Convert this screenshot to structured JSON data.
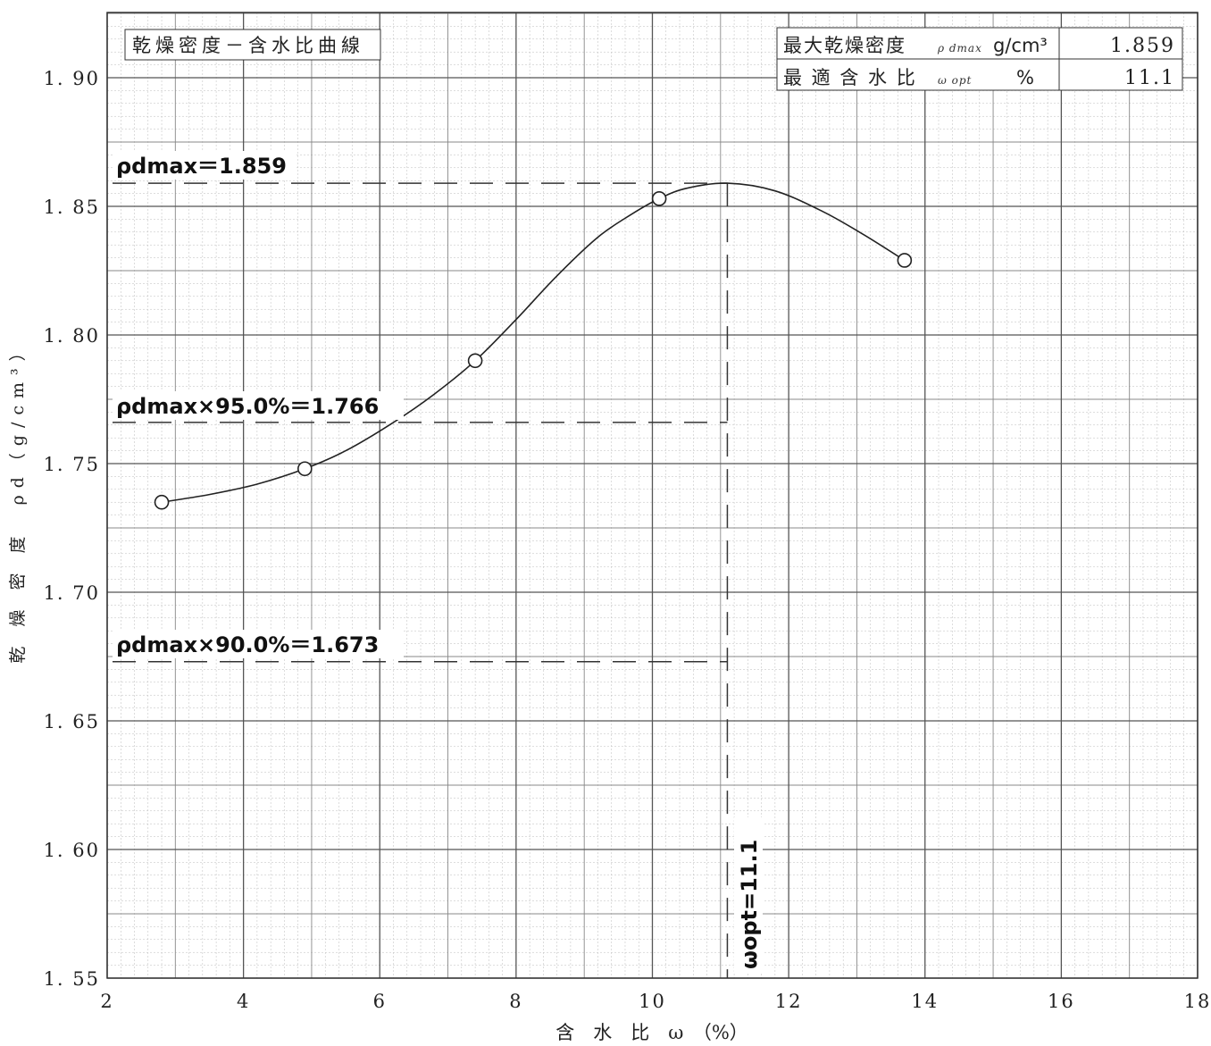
{
  "chart_data": {
    "type": "scatter",
    "title": "乾燥密度－含水比曲線",
    "xlabel": "含　水　比　ω　（%）",
    "ylabel": "乾 燥 密 度　ρd（g/cm³）",
    "xlim": [
      2,
      18
    ],
    "ylim": [
      1.55,
      1.92
    ],
    "x_ticks": [
      "2",
      "4",
      "6",
      "8",
      "10",
      "12",
      "14",
      "16",
      "18"
    ],
    "y_ticks": [
      "1.55",
      "1.60",
      "1.65",
      "1.70",
      "1.75",
      "1.80",
      "1.85",
      "1.90"
    ],
    "grid": true,
    "points": {
      "x": [
        2.8,
        4.9,
        7.4,
        10.1,
        13.7
      ],
      "y": [
        1.735,
        1.748,
        1.79,
        1.853,
        1.829
      ]
    },
    "curve": {
      "x": [
        2.8,
        3.5,
        4.2,
        4.9,
        5.5,
        6.2,
        6.8,
        7.4,
        8.0,
        8.6,
        9.2,
        9.7,
        10.1,
        10.5,
        11.1,
        11.8,
        12.5,
        13.1,
        13.7
      ],
      "y": [
        1.735,
        1.738,
        1.742,
        1.748,
        1.755,
        1.766,
        1.777,
        1.79,
        1.806,
        1.823,
        1.838,
        1.847,
        1.853,
        1.857,
        1.859,
        1.856,
        1.848,
        1.839,
        1.829
      ]
    },
    "reference_lines": [
      {
        "label": "ρdmax＝1.859",
        "y": 1.859
      },
      {
        "label": "ρdmax×95.0%＝1.766",
        "y": 1.766
      },
      {
        "label": "ρdmax×90.0%＝1.673",
        "y": 1.673
      }
    ],
    "vertical_line": {
      "label": "ωopt=11.1",
      "x": 11.1
    },
    "info_table": {
      "row1_label": "最大乾燥密度",
      "row1_symbol": "ρ dmax",
      "row1_unit": "g/cm³",
      "row1_value": "1.859",
      "row2_label": "最 適 含 水 比",
      "row2_symbol": "ω opt",
      "row2_unit": "%",
      "row2_value": "11.1"
    }
  }
}
